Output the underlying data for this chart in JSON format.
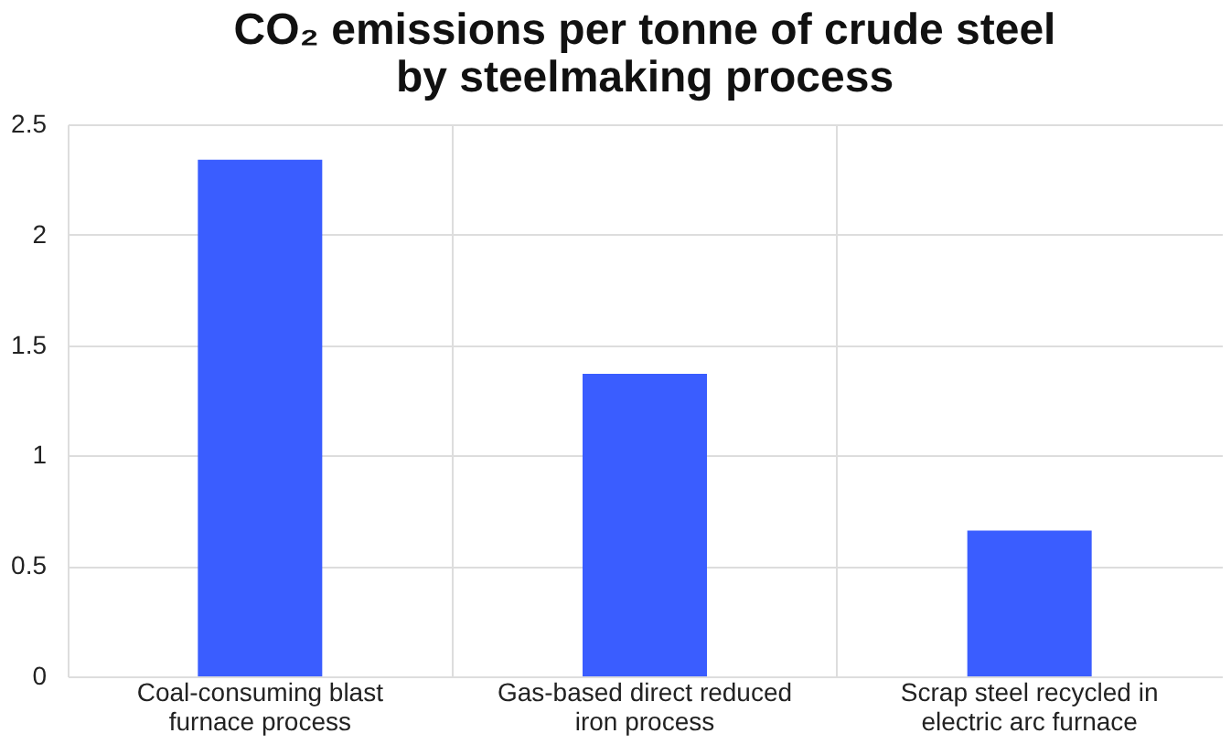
{
  "chart_data": {
    "type": "bar",
    "title": "CO₂ emissions per tonne of crude steel by steelmaking process",
    "categories": [
      "Coal-consuming blast furnace process",
      "Gas-based direct reduced iron process",
      "Scrap steel recycled in electric arc furnace"
    ],
    "values": [
      2.34,
      1.37,
      0.66
    ],
    "color": "#3a5dff",
    "ylim": [
      0,
      2.5
    ],
    "yticks": [
      0,
      0.5,
      1,
      1.5,
      2,
      2.5
    ],
    "grid": true
  }
}
